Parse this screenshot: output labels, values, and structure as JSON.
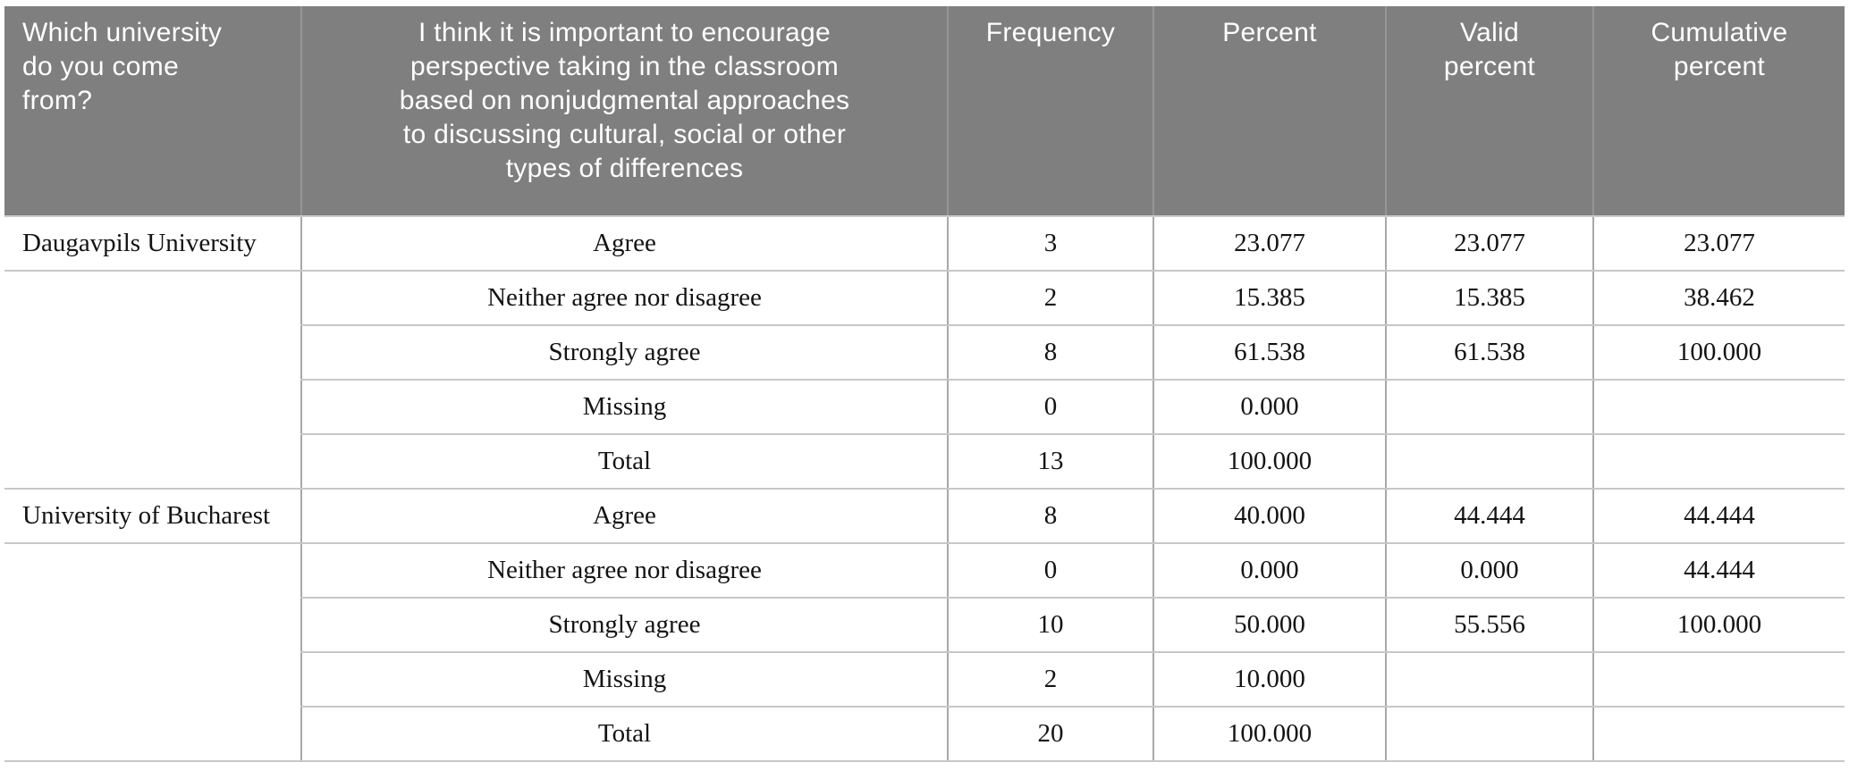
{
  "table": {
    "headers": {
      "university": "Which university\ndo you come\nfrom?",
      "question": "I think it is important to encourage\nperspective taking in the classroom\nbased on nonjudgmental approaches\nto discussing cultural, social or other\ntypes of differences",
      "frequency": "Frequency",
      "percent": "Percent",
      "valid_percent": "Valid\npercent",
      "cumulative_percent": "Cumulative\npercent"
    },
    "groups": [
      {
        "university": "Daugavpils University",
        "rows": [
          {
            "response": "Agree",
            "frequency": "3",
            "percent": "23.077",
            "valid_percent": "23.077",
            "cumulative_percent": "23.077"
          },
          {
            "response": "Neither agree nor disagree",
            "frequency": "2",
            "percent": "15.385",
            "valid_percent": "15.385",
            "cumulative_percent": "38.462"
          },
          {
            "response": "Strongly agree",
            "frequency": "8",
            "percent": "61.538",
            "valid_percent": "61.538",
            "cumulative_percent": "100.000"
          },
          {
            "response": "Missing",
            "frequency": "0",
            "percent": "0.000",
            "valid_percent": "",
            "cumulative_percent": ""
          },
          {
            "response": "Total",
            "frequency": "13",
            "percent": "100.000",
            "valid_percent": "",
            "cumulative_percent": ""
          }
        ]
      },
      {
        "university": "University of Bucharest",
        "rows": [
          {
            "response": "Agree",
            "frequency": "8",
            "percent": "40.000",
            "valid_percent": "44.444",
            "cumulative_percent": "44.444"
          },
          {
            "response": "Neither agree nor disagree",
            "frequency": "0",
            "percent": "0.000",
            "valid_percent": "0.000",
            "cumulative_percent": "44.444"
          },
          {
            "response": "Strongly agree",
            "frequency": "10",
            "percent": "50.000",
            "valid_percent": "55.556",
            "cumulative_percent": "100.000"
          },
          {
            "response": "Missing",
            "frequency": "2",
            "percent": "10.000",
            "valid_percent": "",
            "cumulative_percent": ""
          },
          {
            "response": "Total",
            "frequency": "20",
            "percent": "100.000",
            "valid_percent": "",
            "cumulative_percent": ""
          }
        ]
      }
    ]
  },
  "colors": {
    "header_background": "#7f7f7f",
    "header_text": "#ffffff",
    "header_separator": "#959595",
    "row_border": "#c7c7c7",
    "column_border": "#a8a8a8",
    "body_text": "#131313"
  }
}
